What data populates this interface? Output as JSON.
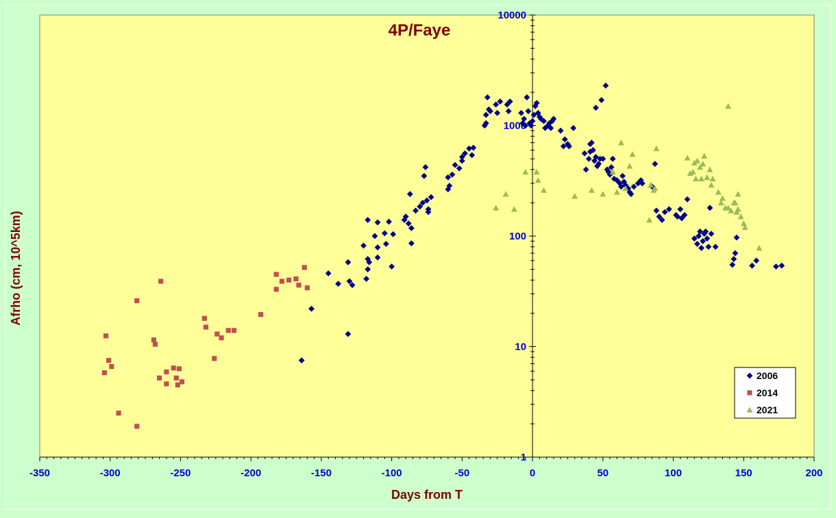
{
  "chart_data": {
    "type": "scatter",
    "title": "4P/Faye",
    "xlabel": "Days from T",
    "ylabel": "Afrho (cm, 10^5km)",
    "xlim": [
      -350,
      200
    ],
    "ylim": [
      1,
      10000
    ],
    "y_scale": "log",
    "x_ticks": [
      -350,
      -300,
      -250,
      -200,
      -150,
      -100,
      -50,
      0,
      50,
      100,
      150,
      200
    ],
    "y_ticks": [
      1,
      10,
      100,
      1000,
      10000
    ],
    "grid": false,
    "legend_position": "bottom-right",
    "colors": {
      "plot_background": "#ffff99",
      "outer_background": "#ccffcc",
      "title": "#800000",
      "axis_labels": "#800000",
      "tick_labels": "#0000cc",
      "axis_line": "#000000"
    },
    "series": [
      {
        "name": "2006",
        "marker": "diamond",
        "color": "#00008b",
        "points": [
          [
            -164,
            7.5
          ],
          [
            -157,
            22
          ],
          [
            -145,
            46
          ],
          [
            -138,
            37
          ],
          [
            -131,
            58
          ],
          [
            -130,
            39
          ],
          [
            -128,
            36
          ],
          [
            -131,
            13
          ],
          [
            -120,
            82
          ],
          [
            -117,
            62
          ],
          [
            -117,
            140
          ],
          [
            -116,
            58
          ],
          [
            -117,
            50
          ],
          [
            -118,
            41
          ],
          [
            -112,
            100
          ],
          [
            -110,
            133
          ],
          [
            -110,
            79
          ],
          [
            -110,
            64
          ],
          [
            -105,
            106
          ],
          [
            -104,
            85
          ],
          [
            -102,
            135
          ],
          [
            -100,
            53
          ],
          [
            -99,
            104
          ],
          [
            -91,
            140
          ],
          [
            -90,
            150
          ],
          [
            -88,
            130
          ],
          [
            -87,
            240
          ],
          [
            -86,
            118
          ],
          [
            -86,
            86
          ],
          [
            -83,
            170
          ],
          [
            -80,
            185
          ],
          [
            -78,
            200
          ],
          [
            -77,
            350
          ],
          [
            -76,
            420
          ],
          [
            -75,
            210
          ],
          [
            -74,
            175
          ],
          [
            -74,
            165
          ],
          [
            -72,
            225
          ],
          [
            -60,
            265
          ],
          [
            -60,
            340
          ],
          [
            -59,
            285
          ],
          [
            -57,
            360
          ],
          [
            -55,
            440
          ],
          [
            -52,
            410
          ],
          [
            -50,
            520
          ],
          [
            -50,
            480
          ],
          [
            -48,
            560
          ],
          [
            -45,
            620
          ],
          [
            -43,
            540
          ],
          [
            -42,
            630
          ],
          [
            -34,
            1000
          ],
          [
            -33,
            1050
          ],
          [
            -33,
            1250
          ],
          [
            -32,
            1800
          ],
          [
            -31,
            1400
          ],
          [
            -30,
            1350
          ],
          [
            -26,
            1550
          ],
          [
            -25,
            1300
          ],
          [
            -23,
            1650
          ],
          [
            -18,
            1550
          ],
          [
            -17,
            1350
          ],
          [
            -16,
            1650
          ],
          [
            -8,
            1300
          ],
          [
            -7,
            1050
          ],
          [
            -6,
            1150
          ],
          [
            -5,
            1000
          ],
          [
            -4,
            1800
          ],
          [
            -3,
            1350
          ],
          [
            -2,
            1050
          ],
          [
            -1,
            1000
          ],
          [
            0,
            1100
          ],
          [
            1,
            1250
          ],
          [
            2,
            1500
          ],
          [
            3,
            1600
          ],
          [
            4,
            1300
          ],
          [
            5,
            1200
          ],
          [
            6,
            1150
          ],
          [
            8,
            1100
          ],
          [
            9,
            950
          ],
          [
            11,
            1000
          ],
          [
            12,
            1050
          ],
          [
            13,
            950
          ],
          [
            14,
            1100
          ],
          [
            15,
            1150
          ],
          [
            20,
            900
          ],
          [
            22,
            650
          ],
          [
            23,
            750
          ],
          [
            25,
            680
          ],
          [
            26,
            650
          ],
          [
            29,
            950
          ],
          [
            37,
            560
          ],
          [
            38,
            400
          ],
          [
            40,
            500
          ],
          [
            41,
            680
          ],
          [
            41,
            580
          ],
          [
            42,
            700
          ],
          [
            43,
            600
          ],
          [
            44,
            480
          ],
          [
            45,
            1450
          ],
          [
            45,
            520
          ],
          [
            46,
            430
          ],
          [
            47,
            450
          ],
          [
            48,
            500
          ],
          [
            49,
            1700
          ],
          [
            50,
            500
          ],
          [
            52,
            2300
          ],
          [
            53,
            400
          ],
          [
            54,
            380
          ],
          [
            55,
            360
          ],
          [
            56,
            420
          ],
          [
            57,
            500
          ],
          [
            58,
            330
          ],
          [
            60,
            320
          ],
          [
            62,
            300
          ],
          [
            63,
            280
          ],
          [
            64,
            350
          ],
          [
            65,
            310
          ],
          [
            66,
            290
          ],
          [
            68,
            270
          ],
          [
            69,
            250
          ],
          [
            70,
            240
          ],
          [
            72,
            280
          ],
          [
            75,
            300
          ],
          [
            77,
            320
          ],
          [
            78,
            300
          ],
          [
            85,
            280
          ],
          [
            87,
            450
          ],
          [
            88,
            170
          ],
          [
            90,
            150
          ],
          [
            92,
            140
          ],
          [
            94,
            165
          ],
          [
            97,
            175
          ],
          [
            102,
            155
          ],
          [
            103,
            150
          ],
          [
            105,
            175
          ],
          [
            106,
            145
          ],
          [
            108,
            155
          ],
          [
            110,
            215
          ],
          [
            115,
            95
          ],
          [
            117,
            85
          ],
          [
            118,
            100
          ],
          [
            119,
            110
          ],
          [
            120,
            78
          ],
          [
            121,
            90
          ],
          [
            122,
            105
          ],
          [
            123,
            110
          ],
          [
            124,
            95
          ],
          [
            125,
            80
          ],
          [
            126,
            180
          ],
          [
            127,
            105
          ],
          [
            130,
            80
          ],
          [
            142,
            55
          ],
          [
            143,
            62
          ],
          [
            144,
            70
          ],
          [
            145,
            97
          ],
          [
            156,
            54
          ],
          [
            159,
            60
          ],
          [
            173,
            53
          ],
          [
            177,
            54
          ]
        ]
      },
      {
        "name": "2014",
        "marker": "square",
        "color": "#c0504d",
        "points": [
          [
            -304,
            5.8
          ],
          [
            -303,
            12.5
          ],
          [
            -301,
            7.5
          ],
          [
            -299,
            6.6
          ],
          [
            -294,
            2.5
          ],
          [
            -281,
            26
          ],
          [
            -281,
            1.9
          ],
          [
            -269,
            11.5
          ],
          [
            -268,
            10.5
          ],
          [
            -265,
            5.2
          ],
          [
            -264,
            39
          ],
          [
            -260,
            5.9
          ],
          [
            -260,
            4.6
          ],
          [
            -255,
            6.4
          ],
          [
            -253,
            5.2
          ],
          [
            -252,
            4.5
          ],
          [
            -251,
            6.3
          ],
          [
            -249,
            4.8
          ],
          [
            -233,
            18
          ],
          [
            -232,
            15
          ],
          [
            -226,
            7.8
          ],
          [
            -224,
            13
          ],
          [
            -221,
            12
          ],
          [
            -216,
            14
          ],
          [
            -212,
            14
          ],
          [
            -193,
            19.5
          ],
          [
            -182,
            45
          ],
          [
            -182,
            33
          ],
          [
            -178,
            39
          ],
          [
            -173,
            40
          ],
          [
            -168,
            41
          ],
          [
            -166,
            36
          ],
          [
            -162,
            52
          ],
          [
            -160,
            34
          ]
        ]
      },
      {
        "name": "2021",
        "marker": "triangle",
        "color": "#9bbb59",
        "points": [
          [
            -26,
            180
          ],
          [
            -19,
            240
          ],
          [
            -13,
            175
          ],
          [
            -5,
            380
          ],
          [
            3,
            380
          ],
          [
            4,
            320
          ],
          [
            8,
            260
          ],
          [
            30,
            230
          ],
          [
            42,
            260
          ],
          [
            50,
            240
          ],
          [
            57,
            380
          ],
          [
            60,
            250
          ],
          [
            63,
            700
          ],
          [
            66,
            270
          ],
          [
            69,
            430
          ],
          [
            71,
            550
          ],
          [
            83,
            140
          ],
          [
            84,
            290
          ],
          [
            86,
            260
          ],
          [
            87,
            270
          ],
          [
            88,
            620
          ],
          [
            110,
            510
          ],
          [
            112,
            370
          ],
          [
            114,
            380
          ],
          [
            115,
            460
          ],
          [
            116,
            330
          ],
          [
            117,
            480
          ],
          [
            119,
            420
          ],
          [
            120,
            330
          ],
          [
            121,
            450
          ],
          [
            122,
            530
          ],
          [
            124,
            340
          ],
          [
            126,
            400
          ],
          [
            127,
            290
          ],
          [
            128,
            330
          ],
          [
            132,
            250
          ],
          [
            134,
            200
          ],
          [
            135,
            220
          ],
          [
            137,
            180
          ],
          [
            139,
            180
          ],
          [
            139,
            1500
          ],
          [
            141,
            170
          ],
          [
            143,
            200
          ],
          [
            144,
            200
          ],
          [
            145,
            165
          ],
          [
            146,
            240
          ],
          [
            146,
            175
          ],
          [
            148,
            150
          ],
          [
            150,
            130
          ],
          [
            151,
            120
          ],
          [
            161,
            78
          ]
        ]
      }
    ]
  }
}
